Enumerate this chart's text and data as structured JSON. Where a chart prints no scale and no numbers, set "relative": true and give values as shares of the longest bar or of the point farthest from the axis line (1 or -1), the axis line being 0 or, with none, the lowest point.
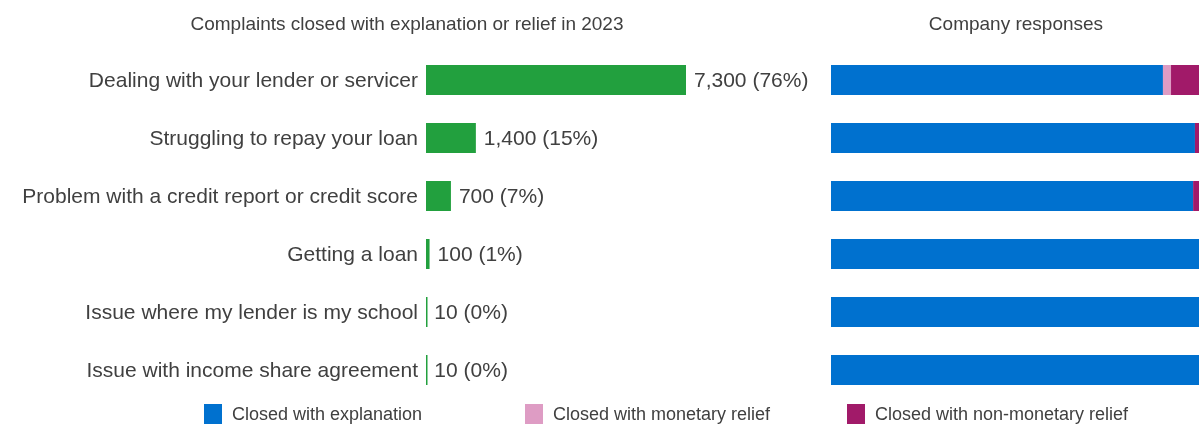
{
  "chart_data": [
    {
      "type": "bar",
      "orientation": "horizontal",
      "title": "Complaints closed with explanation or relief in 2023",
      "categories": [
        "Dealing with your lender or servicer",
        "Struggling to repay your loan",
        "Problem with a credit report or credit score",
        "Getting a loan",
        "Issue where my lender is my school",
        "Issue with income share agreement"
      ],
      "values": [
        7300,
        1400,
        700,
        100,
        10,
        10
      ],
      "color": "#22a03e",
      "value_labels": [
        "7,300 (76%)",
        "1,400 (15%)",
        "700 (7%)",
        "100 (1%)",
        "10 (0%)",
        "10 (0%)"
      ]
    },
    {
      "type": "bar",
      "orientation": "horizontal",
      "stacked": true,
      "relative": true,
      "title": "Company responses",
      "categories": [
        null,
        null,
        null,
        null,
        null,
        null
      ],
      "legend": "bottom",
      "series": [
        {
          "name": "Closed with explanation",
          "color": "#0071cf",
          "values": [
            0.902,
            0.989,
            0.984,
            1,
            1,
            1
          ]
        },
        {
          "name": "Closed with monetary relief",
          "color": "#de9cc4",
          "values": [
            0.022,
            0,
            0,
            0,
            0,
            0
          ]
        },
        {
          "name": "Closed with non-monetary relief",
          "color": "#a11a69",
          "values": [
            0.076,
            0.011,
            0.016,
            0,
            0,
            0
          ]
        }
      ]
    }
  ]
}
